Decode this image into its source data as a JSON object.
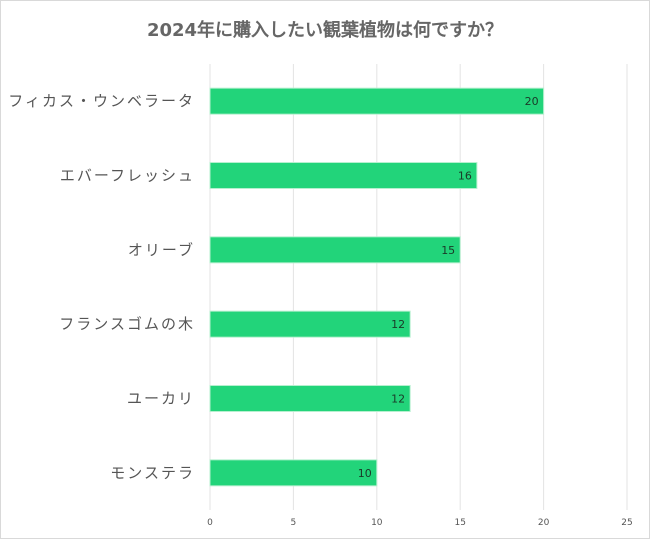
{
  "chart_data": {
    "type": "bar",
    "orientation": "horizontal",
    "title": "2024年に購入したい観葉植物は何ですか？",
    "categories": [
      "フィカス・ウンベラータ",
      "エバーフレッシュ",
      "オリーブ",
      "フランスゴムの木",
      "ユーカリ",
      "モンステラ"
    ],
    "values": [
      20,
      16,
      15,
      12,
      12,
      10
    ],
    "xlim": [
      0,
      25
    ],
    "xticks": [
      "0",
      "5",
      "10",
      "15",
      "20",
      "25"
    ],
    "grid": true,
    "data_labels": true,
    "bar_color": "#22d47a",
    "xlabel": "",
    "ylabel": ""
  }
}
